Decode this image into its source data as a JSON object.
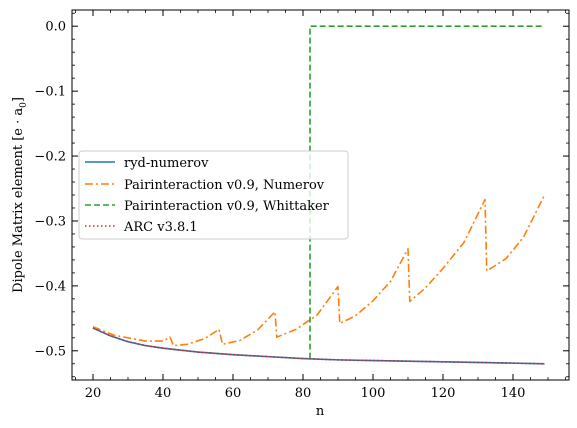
{
  "chart_data": {
    "type": "line",
    "xlabel": "n",
    "ylabel": "Dipole Matrix element [e · a",
    "ylabel_sub": "0",
    "ylabel_close": "]",
    "xlim": [
      14,
      156
    ],
    "ylim": [
      -0.545,
      0.025
    ],
    "xticks": [
      20,
      40,
      60,
      80,
      100,
      120,
      140
    ],
    "yticks": [
      0.0,
      -0.1,
      -0.2,
      -0.3,
      -0.4,
      -0.5
    ],
    "ytick_labels": [
      "0.0",
      "−0.1",
      "−0.2",
      "−0.3",
      "−0.4",
      "−0.5"
    ],
    "legend_position": "center-left",
    "grid": false,
    "series": [
      {
        "name": "ryd-numerov",
        "color": "#1f77b4",
        "style": "solid",
        "x": [
          20,
          25,
          30,
          35,
          40,
          50,
          60,
          70,
          80,
          90,
          100,
          110,
          120,
          130,
          140,
          149
        ],
        "y": [
          -0.465,
          -0.477,
          -0.486,
          -0.492,
          -0.496,
          -0.502,
          -0.506,
          -0.509,
          -0.512,
          -0.514,
          -0.515,
          -0.516,
          -0.517,
          -0.518,
          -0.519,
          -0.52
        ]
      },
      {
        "name": "Pairinteraction v0.9, Numerov",
        "color": "#ff7f0e",
        "style": "dashdot",
        "x": [
          20,
          26,
          30,
          35,
          40,
          42,
          43,
          47,
          52,
          56,
          57,
          62,
          67,
          72,
          72.5,
          78,
          84,
          90,
          90.5,
          95,
          100,
          105,
          110,
          110.5,
          115,
          120,
          126,
          132,
          132.5,
          138,
          143,
          149
        ],
        "y": [
          -0.463,
          -0.476,
          -0.48,
          -0.485,
          -0.485,
          -0.479,
          -0.492,
          -0.49,
          -0.481,
          -0.467,
          -0.49,
          -0.484,
          -0.468,
          -0.44,
          -0.479,
          -0.467,
          -0.445,
          -0.401,
          -0.458,
          -0.446,
          -0.423,
          -0.393,
          -0.343,
          -0.424,
          -0.403,
          -0.373,
          -0.333,
          -0.267,
          -0.377,
          -0.358,
          -0.325,
          -0.26
        ]
      },
      {
        "name": "Pairinteraction v0.9, Whittaker",
        "color": "#2ca02c",
        "style": "dashed",
        "x": [
          82,
          82,
          83,
          149
        ],
        "y": [
          -0.512,
          0.0,
          0.0,
          0.0
        ]
      },
      {
        "name": "ARC v3.8.1",
        "color": "#d62728",
        "style": "dotted",
        "x": [
          20,
          25,
          30,
          35,
          40,
          50,
          60,
          70,
          80,
          90,
          100,
          110,
          120,
          130,
          140,
          149
        ],
        "y": [
          -0.465,
          -0.477,
          -0.486,
          -0.492,
          -0.496,
          -0.502,
          -0.506,
          -0.509,
          -0.512,
          -0.514,
          -0.515,
          -0.516,
          -0.517,
          -0.518,
          -0.519,
          -0.52
        ]
      }
    ]
  }
}
